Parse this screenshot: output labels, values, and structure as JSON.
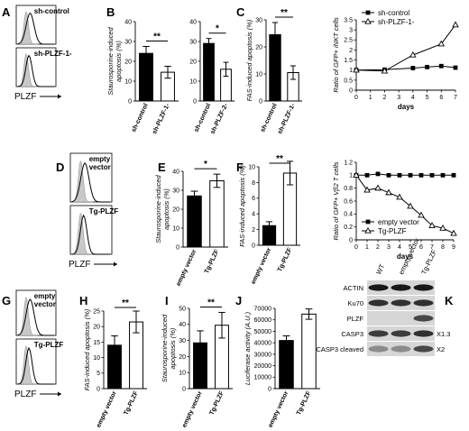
{
  "flow_panels": [
    {
      "id": "A",
      "letter": "A",
      "sub": [
        {
          "label": "sh-control"
        },
        {
          "label": "sh-PLZF-1-"
        }
      ],
      "xlabel": "PLZF"
    },
    {
      "id": "D",
      "letter": "D",
      "sub": [
        {
          "label": "empty\nvector"
        },
        {
          "label": "Tg-PLZF"
        }
      ],
      "xlabel": "PLZF"
    },
    {
      "id": "G",
      "letter": "G",
      "sub": [
        {
          "label": "empty\nvector"
        },
        {
          "label": "Tg-PLZF"
        }
      ],
      "xlabel": "PLZF"
    }
  ],
  "chart_data": [
    {
      "id": "B1",
      "letter": "B",
      "type": "bar",
      "ylabel": "Staurosporine-induced apoptosis (%)",
      "ylim": [
        0,
        40
      ],
      "yticks": [
        0,
        10,
        20,
        30,
        40
      ],
      "categories": [
        "sh-control",
        "sh-PLZF-1-"
      ],
      "values": [
        24,
        14.5
      ],
      "errors": [
        3.5,
        3
      ],
      "fills": [
        "black",
        "white"
      ],
      "sig": "**"
    },
    {
      "id": "B2",
      "type": "bar",
      "ylabel": "",
      "ylim": [
        0,
        40
      ],
      "yticks": [
        0,
        10,
        20,
        30,
        40
      ],
      "categories": [
        "sh-control",
        "sh-PLZF-2-"
      ],
      "values": [
        29,
        16
      ],
      "errors": [
        2.5,
        3.5
      ],
      "fills": [
        "black",
        "white"
      ],
      "sig": "*"
    },
    {
      "id": "C1",
      "letter": "C",
      "type": "bar",
      "ylabel": "FAS-induced apoptosis (%)",
      "ylim": [
        0,
        30
      ],
      "yticks": [
        0,
        10,
        20,
        30
      ],
      "categories": [
        "sh-control",
        "sh-PLZF-1-"
      ],
      "values": [
        24.5,
        10.5
      ],
      "errors": [
        4.5,
        2.5
      ],
      "fills": [
        "black",
        "white"
      ],
      "sig": "**"
    },
    {
      "id": "C2",
      "type": "line",
      "ylabel": "Ratio of GFP+ iNKT cells",
      "xlabel": "days",
      "xlim": [
        0,
        7
      ],
      "ylim": [
        0,
        3.5
      ],
      "xticks": [
        0,
        1,
        2,
        3,
        4,
        5,
        6,
        7
      ],
      "yticks": [
        0,
        0.5,
        1,
        1.5,
        2,
        2.5,
        3,
        3.5
      ],
      "legend": "top-left",
      "series": [
        {
          "name": "sh-control",
          "marker": "square",
          "x": [
            0,
            2,
            4,
            5,
            6,
            7
          ],
          "y": [
            1,
            1.02,
            1.1,
            1.15,
            1.2,
            1.12
          ]
        },
        {
          "name": "sh-PLZF-1-",
          "marker": "triangle",
          "x": [
            0,
            2,
            4,
            6,
            7
          ],
          "y": [
            1,
            0.95,
            1.75,
            2.3,
            3.25
          ]
        }
      ]
    },
    {
      "id": "E",
      "letter": "E",
      "type": "bar",
      "ylabel": "Staurosporine-induced apoptosis (%)",
      "ylim": [
        0,
        40
      ],
      "yticks": [
        0,
        10,
        20,
        30,
        40
      ],
      "categories": [
        "empty vector",
        "Tg-PLZF"
      ],
      "values": [
        27,
        35
      ],
      "errors": [
        2.5,
        3.5
      ],
      "fills": [
        "black",
        "white"
      ],
      "sig": "*"
    },
    {
      "id": "F1",
      "letter": "F",
      "type": "bar",
      "ylabel": "FAS-induced apoptosis (%)",
      "ylim": [
        0,
        10
      ],
      "yticks": [
        0,
        2,
        4,
        6,
        8,
        10
      ],
      "categories": [
        "empty vector",
        "Tg-PLZF"
      ],
      "values": [
        2.5,
        9.2
      ],
      "errors": [
        0.5,
        1.5
      ],
      "fills": [
        "black",
        "white"
      ],
      "sig": "**"
    },
    {
      "id": "F2",
      "type": "line",
      "ylabel": "Ratio of GFP+ Vβ2 T cells",
      "xlabel": "days",
      "xlim": [
        0,
        9
      ],
      "ylim": [
        0,
        1.2
      ],
      "xticks": [
        0,
        1,
        2,
        3,
        4,
        5,
        6,
        7,
        8,
        9
      ],
      "yticks": [
        0,
        0.2,
        0.4,
        0.6,
        0.8,
        1.0,
        1.2
      ],
      "legend": "bottom-left",
      "series": [
        {
          "name": "empty vector",
          "marker": "square",
          "x": [
            0,
            1,
            2,
            3,
            4,
            5,
            6,
            7,
            8,
            9
          ],
          "y": [
            1,
            1.0,
            1.02,
            1.0,
            1.0,
            1.0,
            1.0,
            1.0,
            1.0,
            1.0
          ]
        },
        {
          "name": "Tg-PLZF",
          "marker": "triangle",
          "x": [
            0,
            1,
            2,
            3,
            4,
            5,
            6,
            7,
            8,
            9
          ],
          "y": [
            1,
            0.77,
            0.8,
            0.73,
            0.66,
            0.52,
            0.38,
            0.22,
            0.18,
            0.1
          ]
        }
      ]
    },
    {
      "id": "H",
      "letter": "H",
      "type": "bar",
      "ylabel": "FAS-induced apoptosis (%)",
      "ylim": [
        0,
        25
      ],
      "yticks": [
        0,
        5,
        10,
        15,
        20,
        25
      ],
      "categories": [
        "empty vector",
        "Tg-PLZF"
      ],
      "values": [
        14,
        21.5
      ],
      "errors": [
        3,
        3.5
      ],
      "fills": [
        "black",
        "white"
      ],
      "sig": "**"
    },
    {
      "id": "I",
      "letter": "I",
      "type": "bar",
      "ylabel": "Staurosporine-induced apoptosis (%)",
      "ylim": [
        0,
        50
      ],
      "yticks": [
        0,
        10,
        20,
        30,
        40,
        50
      ],
      "categories": [
        "empty vector",
        "Tg-PLZF"
      ],
      "values": [
        28.5,
        39.5
      ],
      "errors": [
        7.5,
        8
      ],
      "fills": [
        "black",
        "white"
      ],
      "sig": "**"
    },
    {
      "id": "J",
      "letter": "J",
      "type": "bar",
      "ylabel": "Luciferase activity (A.U.)",
      "ylim": [
        0,
        70000
      ],
      "yticks": [
        0,
        10000,
        20000,
        30000,
        40000,
        50000,
        60000,
        70000
      ],
      "categories": [
        "empty vector",
        "Tg-PLZF"
      ],
      "values": [
        42000,
        65000
      ],
      "errors": [
        4000,
        4500
      ],
      "fills": [
        "black",
        "white"
      ],
      "sig": ""
    }
  ],
  "western": {
    "letter": "K",
    "lanes": [
      "WT",
      "empty-vector",
      "Tg-PLZF"
    ],
    "rows": [
      {
        "label": "ACTIN",
        "side": "",
        "intensity": [
          1,
          1,
          1
        ]
      },
      {
        "label": "Ku70",
        "side": "",
        "intensity": [
          0.9,
          0.9,
          0.9
        ]
      },
      {
        "label": "PLZF",
        "side": "",
        "intensity": [
          0,
          0,
          0.8
        ]
      },
      {
        "label": "CASP3",
        "side": "X1.3",
        "intensity": [
          0.85,
          0.85,
          0.9
        ]
      },
      {
        "label": "CASP3 cleaved",
        "side": "X2",
        "intensity": [
          0.5,
          0.5,
          0.8
        ]
      }
    ]
  }
}
